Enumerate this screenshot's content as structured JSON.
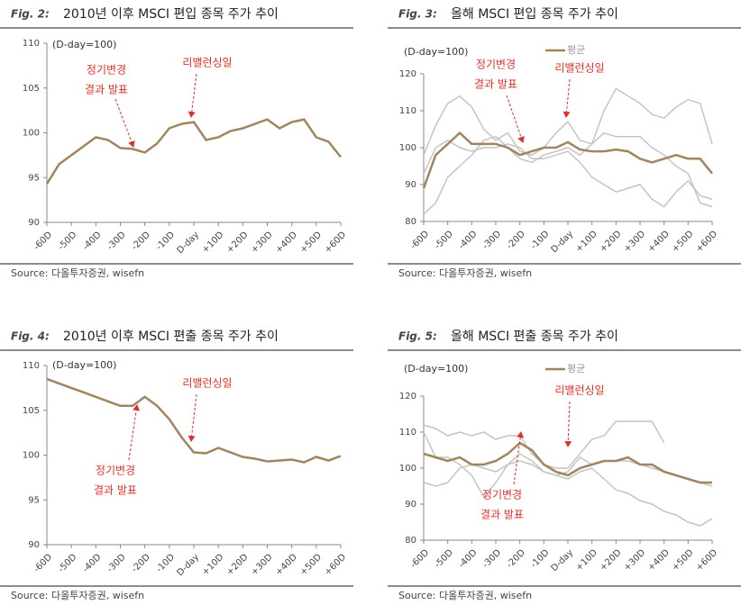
{
  "chart_data": [
    {
      "type": "line",
      "label": "Fig. 2:",
      "title": "2010년 이후 MSCI 편입 종목 주가 추이",
      "unit": "(D-day=100)",
      "annotations": [
        [
          "정기변경",
          "결과 발표"
        ],
        [
          "리밸런싱일"
        ]
      ],
      "source": "Source: 다올투자증권, wisefn",
      "xlim": [
        -60,
        60
      ],
      "ylim": [
        90,
        110
      ],
      "yticks": [
        90,
        95,
        100,
        105,
        110
      ],
      "xticks": [
        {
          "value": -60,
          "label": "-60D"
        },
        {
          "value": -50,
          "label": "-50D"
        },
        {
          "value": -40,
          "label": "-40D"
        },
        {
          "value": -30,
          "label": "-30D"
        },
        {
          "value": -20,
          "label": "-20D"
        },
        {
          "value": -10,
          "label": "-10D"
        },
        {
          "value": 0,
          "label": "D-day"
        },
        {
          "value": 10,
          "label": "+10D"
        },
        {
          "value": 20,
          "label": "+20D"
        },
        {
          "value": 30,
          "label": "+30D"
        },
        {
          "value": 40,
          "label": "+40D"
        },
        {
          "value": 50,
          "label": "+50D"
        },
        {
          "value": 60,
          "label": "+60D"
        }
      ],
      "x": [
        -60,
        -55,
        -50,
        -45,
        -40,
        -35,
        -30,
        -25,
        -20,
        -15,
        -10,
        -5,
        0,
        5,
        10,
        15,
        20,
        25,
        30,
        35,
        40,
        45,
        50,
        55,
        60
      ],
      "series": [
        {
          "color": "#a08560",
          "values": [
            94.3,
            96.5,
            97.5,
            98.5,
            99.5,
            99.2,
            98.3,
            98.2,
            97.8,
            98.8,
            100.5,
            101,
            101.2,
            99.2,
            99.5,
            100.2,
            100.5,
            101,
            101.5,
            100.5,
            101.2,
            101.5,
            99.5,
            99,
            97.3
          ]
        }
      ]
    },
    {
      "type": "line",
      "label": "Fig. 3:",
      "title": "올해 MSCI 편입 종목 주가 추이",
      "unit": "(D-day=100)",
      "annotations": [
        [
          "정기변경",
          "결과 발표"
        ],
        [
          "리밸런싱일"
        ]
      ],
      "source": "Source: 다올투자증권, wisefn",
      "xlim": [
        -60,
        60
      ],
      "ylim": [
        80,
        120
      ],
      "yticks": [
        80,
        90,
        100,
        110,
        120
      ],
      "xticks": [
        {
          "value": -60,
          "label": "-60D"
        },
        {
          "value": -50,
          "label": "-50D"
        },
        {
          "value": -40,
          "label": "-40D"
        },
        {
          "value": -30,
          "label": "-30D"
        },
        {
          "value": -20,
          "label": "-20D"
        },
        {
          "value": -10,
          "label": "-10D"
        },
        {
          "value": 0,
          "label": "D-day"
        },
        {
          "value": 10,
          "label": "+10D"
        },
        {
          "value": 20,
          "label": "+20D"
        },
        {
          "value": 30,
          "label": "+30D"
        },
        {
          "value": 40,
          "label": "+40D"
        },
        {
          "value": 50,
          "label": "+50D"
        },
        {
          "value": 60,
          "label": "+60D"
        }
      ],
      "x": [
        -60,
        -55,
        -50,
        -45,
        -40,
        -35,
        -30,
        -25,
        -20,
        -15,
        -10,
        -5,
        0,
        5,
        10,
        15,
        20,
        25,
        30,
        35,
        40,
        45,
        50,
        55,
        60
      ],
      "series": [
        {
          "color": "#c4c4c4",
          "values": [
            98,
            106,
            112,
            114,
            111,
            105,
            102,
            104,
            99,
            98,
            100,
            104,
            107,
            102,
            101,
            110,
            116,
            114,
            112,
            109,
            108,
            111,
            113,
            112,
            101
          ]
        },
        {
          "color": "#c4c4c4",
          "values": [
            82,
            85,
            92,
            95,
            98,
            102,
            103,
            100,
            97,
            96,
            98,
            99,
            100,
            98,
            101,
            104,
            103,
            103,
            103,
            100,
            98,
            95,
            93,
            85,
            84
          ]
        },
        {
          "color": "#c4c4c4",
          "values": [
            93,
            100,
            102,
            100,
            99,
            100,
            100,
            101,
            100,
            97,
            97,
            98,
            99,
            96,
            92,
            90,
            88,
            89,
            90,
            86,
            84,
            88,
            91,
            87,
            86
          ]
        },
        {
          "name": "평균",
          "color": "#a08560",
          "values": [
            89,
            98,
            101,
            104,
            101,
            101,
            101,
            100,
            98,
            99,
            100,
            100,
            101.5,
            99.5,
            99,
            99,
            99.5,
            99,
            97,
            96,
            97,
            98,
            97,
            97,
            93
          ]
        }
      ]
    },
    {
      "type": "line",
      "label": "Fig. 4:",
      "title": "2010년 이후 MSCI 편출 종목 주가 추이",
      "unit": "(D-day=100)",
      "annotations": [
        [
          "리밸런싱일"
        ],
        [
          "정기변경",
          "결과 발표"
        ]
      ],
      "source": "Source: 다올투자증권, wisefn",
      "xlim": [
        -60,
        60
      ],
      "ylim": [
        90,
        110
      ],
      "yticks": [
        90,
        95,
        100,
        105,
        110
      ],
      "xticks": [
        {
          "value": -60,
          "label": "-60D"
        },
        {
          "value": -50,
          "label": "-50D"
        },
        {
          "value": -40,
          "label": "-40D"
        },
        {
          "value": -30,
          "label": "-30D"
        },
        {
          "value": -20,
          "label": "-20D"
        },
        {
          "value": -10,
          "label": "-10D"
        },
        {
          "value": 0,
          "label": "D-day"
        },
        {
          "value": 10,
          "label": "+10D"
        },
        {
          "value": 20,
          "label": "+20D"
        },
        {
          "value": 30,
          "label": "+30D"
        },
        {
          "value": 40,
          "label": "+40D"
        },
        {
          "value": 50,
          "label": "+50D"
        },
        {
          "value": 60,
          "label": "+60D"
        }
      ],
      "x": [
        -60,
        -55,
        -50,
        -45,
        -40,
        -35,
        -30,
        -25,
        -20,
        -15,
        -10,
        -5,
        0,
        5,
        10,
        15,
        20,
        25,
        30,
        35,
        40,
        45,
        50,
        55,
        60
      ],
      "series": [
        {
          "color": "#a08560",
          "values": [
            108.5,
            108,
            107.5,
            107,
            106.5,
            106,
            105.5,
            105.5,
            106.5,
            105.5,
            104,
            102,
            100.3,
            100.2,
            100.8,
            100.3,
            99.8,
            99.6,
            99.3,
            99.4,
            99.5,
            99.2,
            99.8,
            99.4,
            99.9
          ]
        }
      ]
    },
    {
      "type": "line",
      "label": "Fig. 5:",
      "title": "올해 MSCI 편출 종목 주가 추이",
      "unit": "(D-day=100)",
      "annotations": [
        [
          "리밸런싱일"
        ],
        [
          "정기변경",
          "결과 발표"
        ]
      ],
      "source": "Source: 다올투자증권, wisefn",
      "xlim": [
        -60,
        60
      ],
      "ylim": [
        80,
        120
      ],
      "yticks": [
        80,
        90,
        100,
        110,
        120
      ],
      "xticks": [
        {
          "value": -60,
          "label": "-60D"
        },
        {
          "value": -50,
          "label": "-50D"
        },
        {
          "value": -40,
          "label": "-40D"
        },
        {
          "value": -30,
          "label": "-30D"
        },
        {
          "value": -20,
          "label": "-20D"
        },
        {
          "value": -10,
          "label": "-10D"
        },
        {
          "value": 0,
          "label": "D-day"
        },
        {
          "value": 10,
          "label": "+10D"
        },
        {
          "value": 20,
          "label": "+20D"
        },
        {
          "value": 30,
          "label": "+30D"
        },
        {
          "value": 40,
          "label": "+40D"
        },
        {
          "value": 50,
          "label": "+50D"
        },
        {
          "value": 60,
          "label": "+60D"
        }
      ],
      "x": [
        -60,
        -55,
        -50,
        -45,
        -40,
        -35,
        -30,
        -25,
        -20,
        -15,
        -10,
        -5,
        0,
        5,
        10,
        15,
        20,
        25,
        30,
        35,
        40,
        45,
        50,
        55,
        60
      ],
      "series": [
        {
          "color": "#c4c4c4",
          "values": [
            112,
            111,
            109,
            110,
            109,
            110,
            108,
            109,
            109,
            104,
            101,
            100,
            100,
            104,
            108,
            109,
            113,
            113,
            113,
            113,
            107,
            null,
            null,
            null,
            null
          ]
        },
        {
          "color": "#c4c4c4",
          "values": [
            96,
            95,
            96,
            100,
            101,
            100,
            99,
            101,
            102,
            101,
            99,
            98,
            97,
            99,
            100,
            97,
            94,
            93,
            91,
            90,
            88,
            87,
            85,
            84,
            86
          ]
        },
        {
          "color": "#c4c4c4",
          "values": [
            110,
            103,
            103,
            101,
            98,
            92,
            96,
            101,
            104,
            102,
            99,
            98,
            99,
            103,
            101,
            102,
            102,
            102,
            101,
            100,
            99,
            98,
            97,
            96,
            95
          ]
        },
        {
          "name": "평균",
          "color": "#a08560",
          "values": [
            104,
            103,
            102,
            103,
            101,
            101,
            102,
            104,
            107,
            105,
            101,
            99,
            98,
            100,
            101,
            102,
            102,
            103,
            101,
            101,
            99,
            98,
            97,
            96,
            96
          ]
        }
      ]
    }
  ]
}
